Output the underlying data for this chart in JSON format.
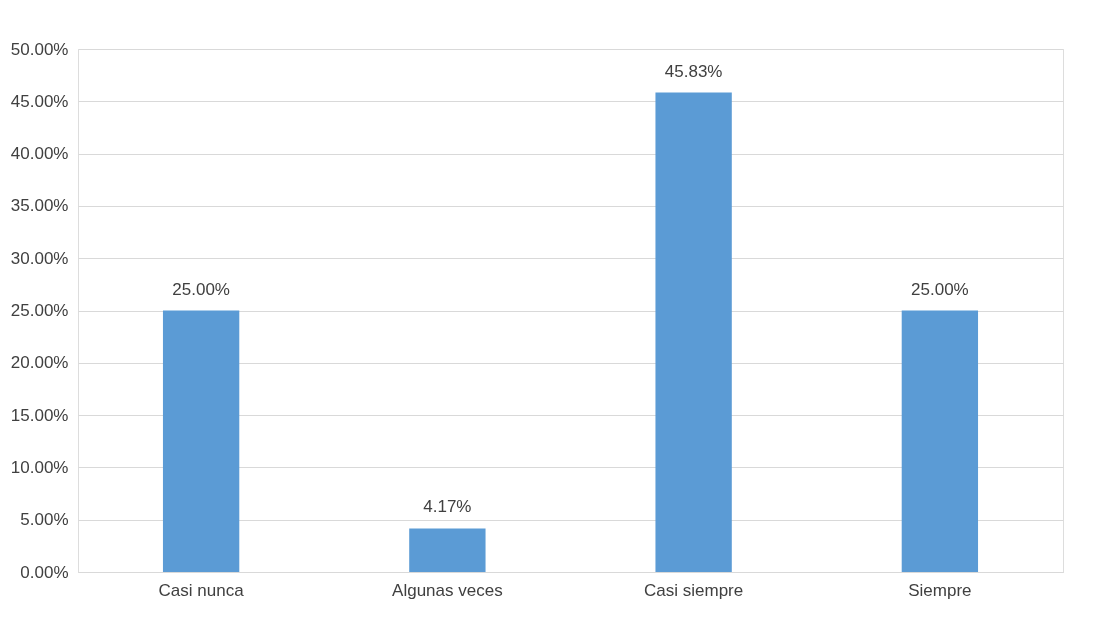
{
  "chart_data": {
    "type": "bar",
    "categories": [
      "Casi nunca",
      "Algunas veces",
      "Casi siempre",
      "Siempre"
    ],
    "values": [
      25,
      4.17,
      45.83,
      25
    ],
    "value_labels": [
      "25.00%",
      "4.17%",
      "45.83%",
      "25.00%"
    ],
    "color": "#5b9bd5",
    "ylim": [
      0,
      50
    ],
    "yticks": [
      {
        "value": 0,
        "label": "0.00%"
      },
      {
        "value": 5,
        "label": "5.00%"
      },
      {
        "value": 10,
        "label": "10.00%"
      },
      {
        "value": 15,
        "label": "15.00%"
      },
      {
        "value": 20,
        "label": "20.00%"
      },
      {
        "value": 25,
        "label": "25.00%"
      },
      {
        "value": 30,
        "label": "30.00%"
      },
      {
        "value": 35,
        "label": "35.00%"
      },
      {
        "value": 40,
        "label": "40.00%"
      },
      {
        "value": 45,
        "label": "45.00%"
      },
      {
        "value": 50,
        "label": "50.00%"
      }
    ],
    "grid": "y"
  }
}
